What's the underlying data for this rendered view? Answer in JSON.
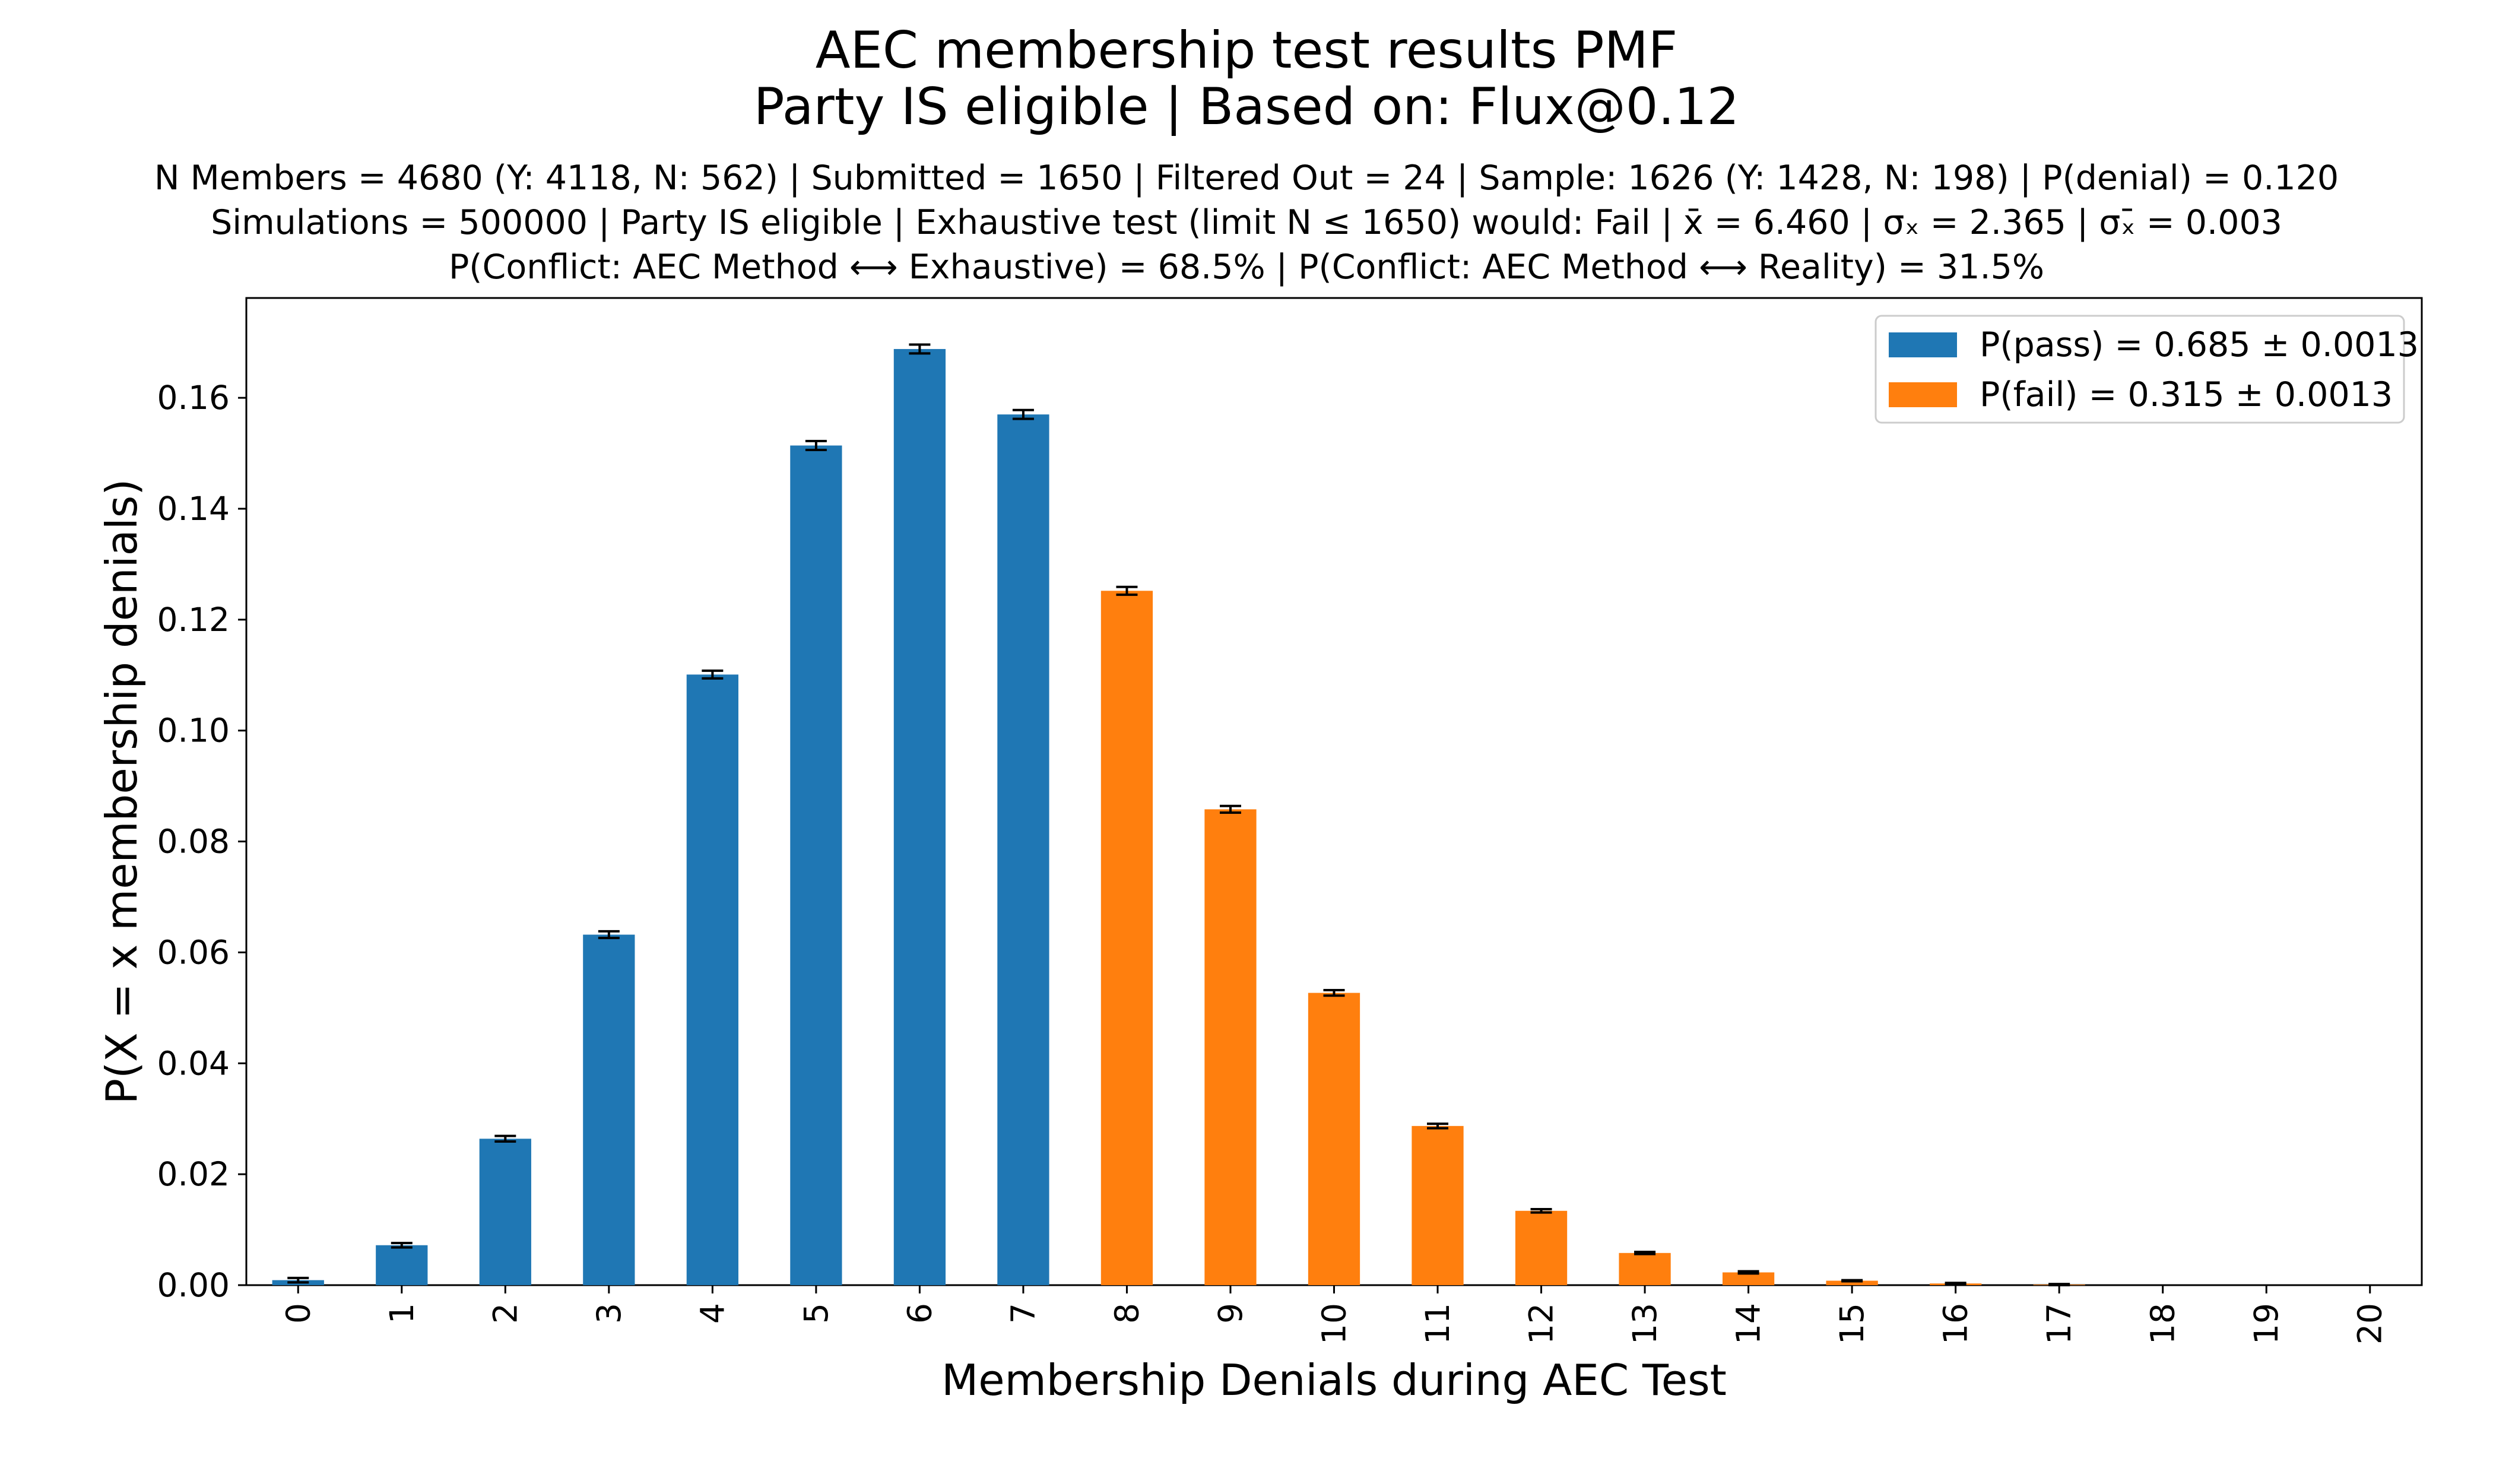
{
  "title_lines": [
    "AEC membership test results PMF",
    "Party IS eligible | Based on: Flux@0.12"
  ],
  "subtitle_lines": [
    "N Members = 4680 (Y: 4118, N: 562) | Submitted = 1650 | Filtered Out = 24 | Sample: 1626 (Y: 1428, N: 198) | P(denial) = 0.120",
    "Simulations = 500000 | Party IS eligible | Exhaustive test (limit N ≤ 1650) would: Fail | x̄ = 6.460 | σₓ = 2.365 | σₓ̄ = 0.003",
    "P(Conflict: AEC Method ⟷ Exhaustive) = 68.5% | P(Conflict: AEC Method ⟷ Reality) = 31.5%"
  ],
  "chart_data": {
    "type": "bar",
    "xlabel": "Membership Denials during AEC Test",
    "ylabel": "P(X = x membership denials)",
    "categories": [
      "0",
      "1",
      "2",
      "3",
      "4",
      "5",
      "6",
      "7",
      "8",
      "9",
      "10",
      "11",
      "12",
      "13",
      "14",
      "15",
      "16",
      "17",
      "18",
      "19",
      "20"
    ],
    "values": [
      0.0009,
      0.0072,
      0.0264,
      0.0632,
      0.1101,
      0.1514,
      0.1688,
      0.157,
      0.1252,
      0.0858,
      0.0527,
      0.0287,
      0.0134,
      0.0058,
      0.0023,
      0.0008,
      0.0003,
      0.0001,
      0.0,
      0.0,
      0.0
    ],
    "error": [
      0.0004,
      0.0004,
      0.0005,
      0.0006,
      0.0007,
      0.0008,
      0.0008,
      0.0008,
      0.0007,
      0.0006,
      0.0005,
      0.0004,
      0.0003,
      0.0002,
      0.0002,
      0.0001,
      0.0001,
      0.0001,
      0.0,
      0.0,
      0.0
    ],
    "groups": [
      "pass",
      "pass",
      "pass",
      "pass",
      "pass",
      "pass",
      "pass",
      "pass",
      "fail",
      "fail",
      "fail",
      "fail",
      "fail",
      "fail",
      "fail",
      "fail",
      "fail",
      "fail",
      "fail",
      "fail",
      "fail"
    ],
    "ylim": [
      0,
      0.178
    ],
    "yticks": [
      "0.00",
      "0.02",
      "0.04",
      "0.06",
      "0.08",
      "0.10",
      "0.12",
      "0.14",
      "0.16"
    ],
    "legend": {
      "position": "top-right",
      "entries": [
        {
          "key": "pass",
          "label": "P(pass) = 0.685 ± 0.0013",
          "color": "#1f77b4"
        },
        {
          "key": "fail",
          "label": "P(fail) = 0.315 ± 0.0013",
          "color": "#ff7f0e"
        }
      ]
    }
  }
}
